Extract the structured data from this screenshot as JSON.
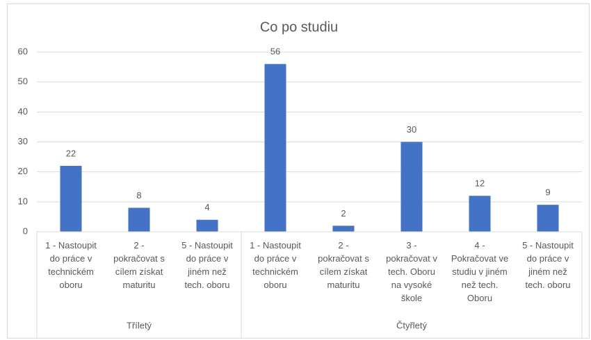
{
  "chart_data": {
    "type": "bar",
    "title": "Co po studiu",
    "color": "#4472c4",
    "groups": [
      {
        "name": "Tříletý",
        "categories": [
          "1 - Nastoupit\ndo práce v\ntechnickém\noboru",
          "2 -\npokračovat s\ncílem získat\nmaturitu",
          "5 - Nastoupit\ndo práce v\njiném než\ntech. oboru"
        ],
        "values": [
          22,
          8,
          4
        ]
      },
      {
        "name": "Čtyřletý",
        "categories": [
          "1 - Nastoupit\ndo práce v\ntechnickém\noboru",
          "2 -\npokračovat s\ncílem získat\nmaturitu",
          "3 -\npokračovat v\ntech. Oboru\nna vysoké\nškole",
          "4 -\nPokračovat ve\nstudiu v jiném\nnež tech.\nOboru",
          "5 - Nastoupit\ndo práce v\njiném než\ntech. oboru"
        ],
        "values": [
          56,
          2,
          30,
          12,
          9
        ]
      }
    ],
    "ylim": [
      0,
      60
    ],
    "yticks": [
      0,
      10,
      20,
      30,
      40,
      50,
      60
    ],
    "grid": true
  }
}
